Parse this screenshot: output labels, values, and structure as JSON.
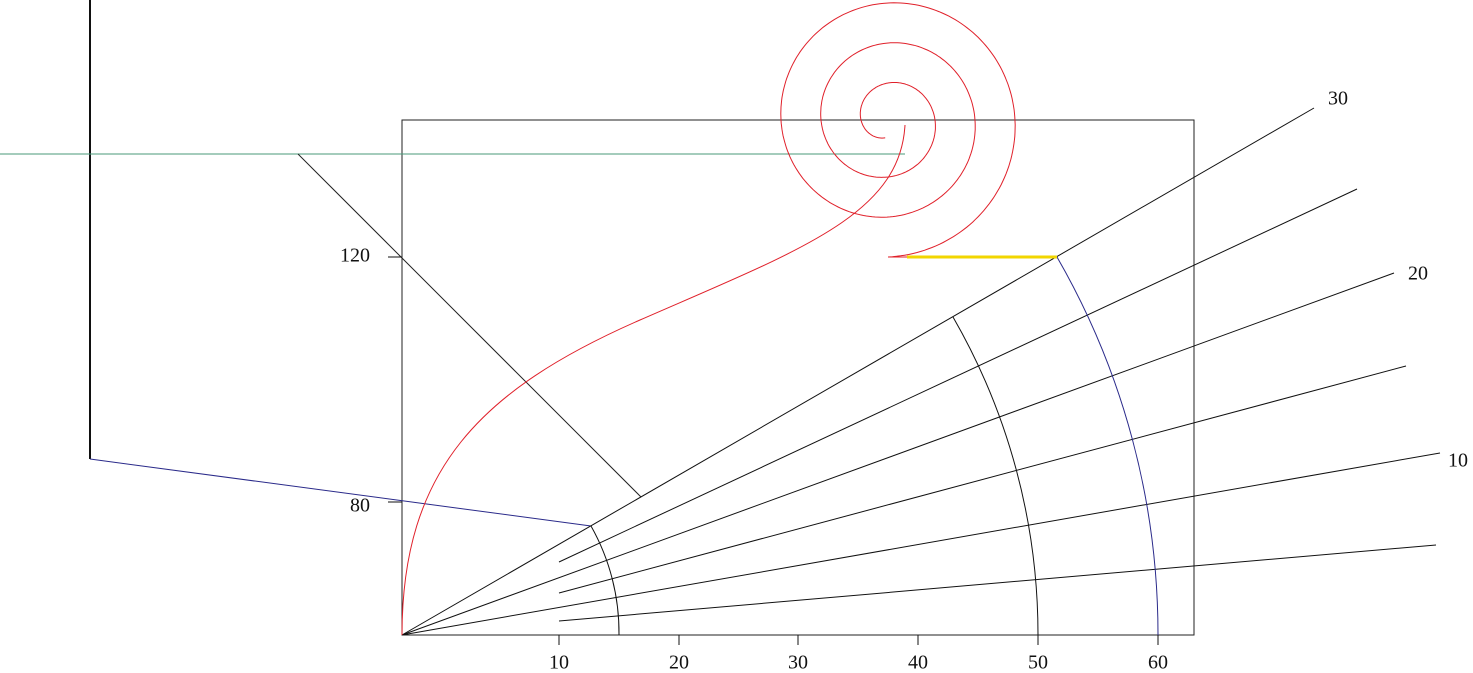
{
  "x_labels": [
    10,
    20,
    30,
    40,
    50,
    60
  ],
  "y_labels": [
    120,
    80
  ],
  "angle_labels": [
    30,
    20,
    10
  ]
}
